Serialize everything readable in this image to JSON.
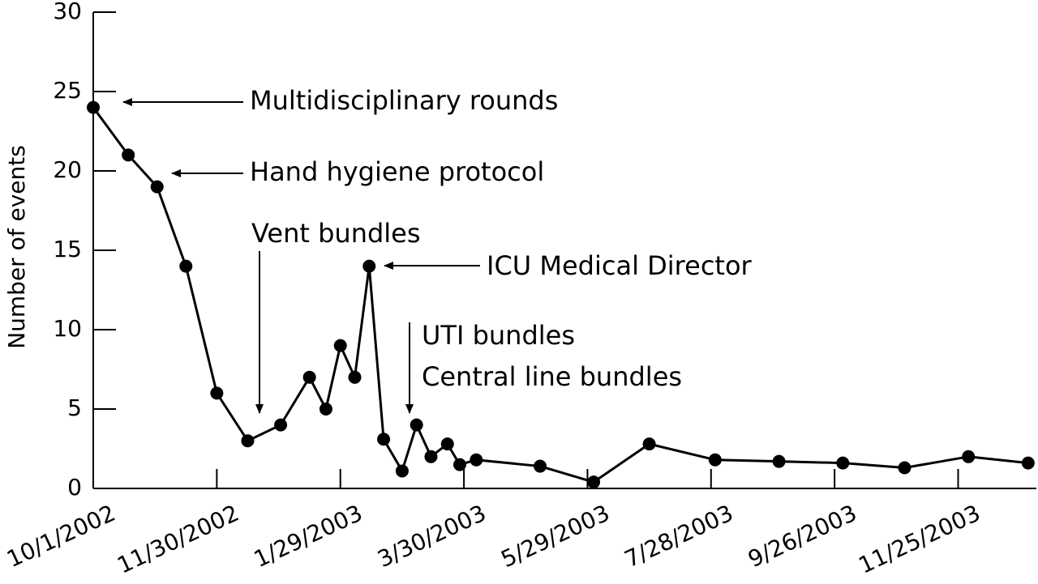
{
  "chart_data": {
    "type": "line",
    "y_label": "Number of events",
    "x": [
      "10/1/2002",
      "10/18/2002",
      "11/1/2002",
      "11/15/2002",
      "11/30/2002",
      "12/15/2002",
      "12/31/2002",
      "1/14/2003",
      "1/22/2003",
      "1/29/2003",
      "2/5/2003",
      "2/12/2003",
      "2/19/2003",
      "2/28/2003",
      "3/7/2003",
      "3/14/2003",
      "3/22/2003",
      "3/28/2003",
      "4/5/2003",
      "5/6/2003",
      "6/1/2003",
      "6/28/2003",
      "7/30/2003",
      "8/30/2003",
      "9/30/2003",
      "10/30/2003",
      "11/30/2003",
      "12/29/2003"
    ],
    "values": [
      24,
      21,
      19,
      14,
      6,
      3,
      4,
      7,
      5,
      9,
      7,
      14,
      3.1,
      1.1,
      4,
      2,
      2.8,
      1.5,
      1.8,
      1.4,
      0.4,
      2.8,
      1.8,
      1.7,
      1.6,
      1.3,
      2,
      1.6
    ],
    "color": "#000000",
    "xlim": [
      "10/1/2002",
      "1/2/2004"
    ],
    "xticks": [
      "10/1/2002",
      "11/30/2002",
      "1/29/2003",
      "3/30/2003",
      "5/29/2003",
      "7/28/2003",
      "9/26/2003",
      "11/25/2003"
    ],
    "ylim": [
      0,
      30
    ],
    "yticks": [
      0,
      5,
      10,
      15,
      20,
      25,
      30
    ],
    "annotations": [
      "Multidisciplinary rounds",
      "Hand hygiene protocol",
      "Vent bundles",
      "ICU Medical Director",
      "UTI bundles",
      "Central line bundles"
    ]
  }
}
